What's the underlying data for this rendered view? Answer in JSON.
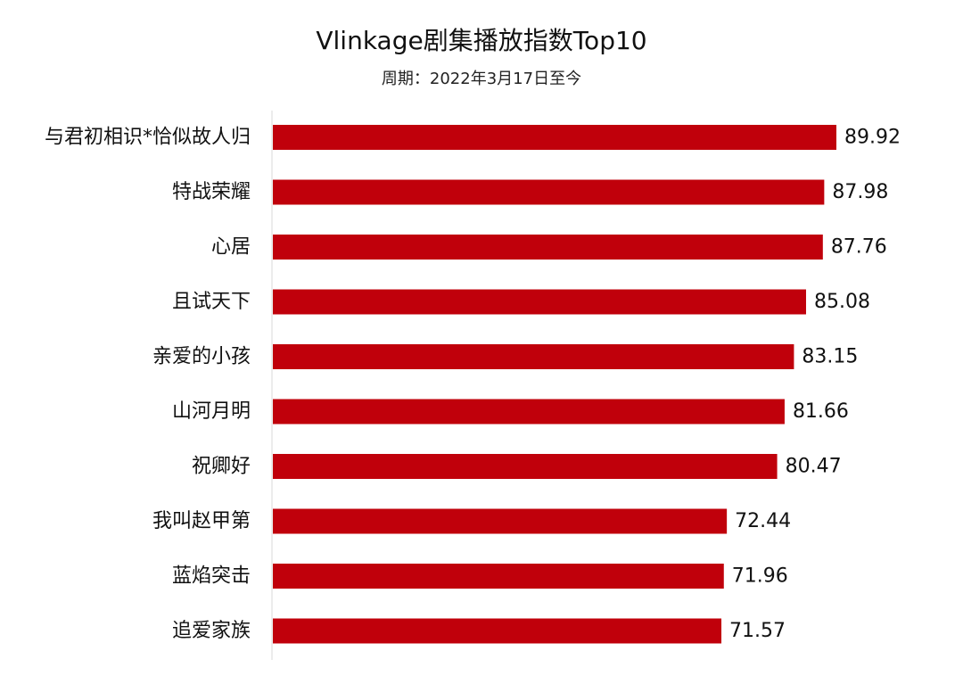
{
  "chart_data": {
    "type": "bar",
    "orientation": "horizontal",
    "title": "Vlinkage剧集播放指数Top10",
    "subtitle": "周期：2022年3月17日至今",
    "categories": [
      "与君初相识*恰似故人归",
      "特战荣耀",
      "心居",
      "且试天下",
      "亲爱的小孩",
      "山河月明",
      "祝卿好",
      "我叫赵甲第",
      "蓝焰突击",
      "追爱家族"
    ],
    "values": [
      89.92,
      87.98,
      87.76,
      85.08,
      83.15,
      81.66,
      80.47,
      72.44,
      71.96,
      71.57
    ],
    "value_labels": [
      "89.92",
      "87.98",
      "87.76",
      "85.08",
      "83.15",
      "81.66",
      "80.47",
      "72.44",
      "71.96",
      "71.57"
    ],
    "bar_color": "#c0000b",
    "xlim": [
      0,
      100
    ],
    "grid": false,
    "legend": "none"
  }
}
